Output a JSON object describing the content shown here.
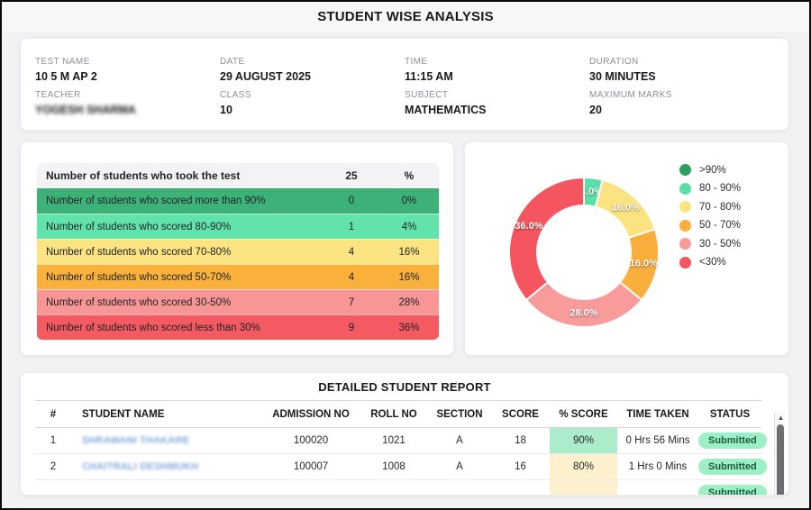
{
  "title": "STUDENT WISE ANALYSIS",
  "test_info": {
    "fields": [
      {
        "label": "TEST NAME",
        "value": "10 5 M AP 2",
        "blurred": false
      },
      {
        "label": "DATE",
        "value": "29 AUGUST 2025",
        "blurred": false
      },
      {
        "label": "TIME",
        "value": "11:15 AM",
        "blurred": false
      },
      {
        "label": "DURATION",
        "value": "30 MINUTES",
        "blurred": false
      },
      {
        "label": "TEACHER",
        "value": "YOGESH SHARMA",
        "blurred": true
      },
      {
        "label": "CLASS",
        "value": "10",
        "blurred": false
      },
      {
        "label": "SUBJECT",
        "value": "MATHEMATICS",
        "blurred": false
      },
      {
        "label": "MAXIMUM MARKS",
        "value": "20",
        "blurred": false
      }
    ]
  },
  "distribution": {
    "header": {
      "label": "Number of students who took the test",
      "count": "25",
      "pct": "%"
    },
    "rows": [
      {
        "label": "Number of students who scored more than 90%",
        "count": "0",
        "pct": "0%",
        "color": "#3cb278"
      },
      {
        "label": "Number of students who scored 80-90%",
        "count": "1",
        "pct": "4%",
        "color": "#61e3ab"
      },
      {
        "label": "Number of students who scored 70-80%",
        "count": "4",
        "pct": "16%",
        "color": "#fce483"
      },
      {
        "label": "Number of students who scored 50-70%",
        "count": "4",
        "pct": "16%",
        "color": "#fab13c"
      },
      {
        "label": "Number of students who scored 30-50%",
        "count": "7",
        "pct": "28%",
        "color": "#f89696"
      },
      {
        "label": "Number of students who scored less than 30%",
        "count": "9",
        "pct": "36%",
        "color": "#f45a61"
      }
    ]
  },
  "chart_data": {
    "type": "pie",
    "donut": true,
    "title": "",
    "legend_position": "right",
    "labels": [
      ">90%",
      "80 - 90%",
      "70 - 80%",
      "50 - 70%",
      "30 - 50%",
      "<30%"
    ],
    "values": [
      0,
      4.0,
      16.0,
      16.0,
      28.0,
      36.0
    ],
    "unit": "percent",
    "colors": [
      "#2d9e5f",
      "#5adfa7",
      "#fbe381",
      "#faae3b",
      "#f89b9b",
      "#f4555e"
    ],
    "data_labels": [
      "",
      "4.0%",
      "16.0%",
      "16.0%",
      "28.0%",
      "36.0%"
    ]
  },
  "report": {
    "title": "DETAILED STUDENT REPORT",
    "columns": [
      "#",
      "STUDENT NAME",
      "ADMISSION NO",
      "ROLL NO",
      "SECTION",
      "SCORE",
      "% SCORE",
      "TIME TAKEN",
      "STATUS"
    ],
    "status_pill": {
      "bg": "#9df0c5",
      "text_color": "#1d5c3e"
    },
    "rows": [
      {
        "index": "1",
        "name": "SHRAWANI THAKARE",
        "name_blurred": true,
        "admission_no": "100020",
        "roll_no": "1021",
        "section": "A",
        "score": "18",
        "pct_score": "90%",
        "pct_bg": "#abedcb",
        "time_taken": "0 Hrs 56 Mins",
        "status": "Submitted",
        "partial": false
      },
      {
        "index": "2",
        "name": "CHAITRALI DESHMUKH",
        "name_blurred": true,
        "admission_no": "100007",
        "roll_no": "1008",
        "section": "A",
        "score": "16",
        "pct_score": "80%",
        "pct_bg": "#fcf1cc",
        "time_taken": "1 Hrs 0 Mins",
        "status": "Submitted",
        "partial": false
      },
      {
        "index": "",
        "name": "",
        "name_blurred": true,
        "admission_no": "",
        "roll_no": "",
        "section": "",
        "score": "",
        "pct_score": "",
        "pct_bg": "#fcf1cc",
        "time_taken": "",
        "status": "Submitted",
        "partial": true
      }
    ]
  }
}
